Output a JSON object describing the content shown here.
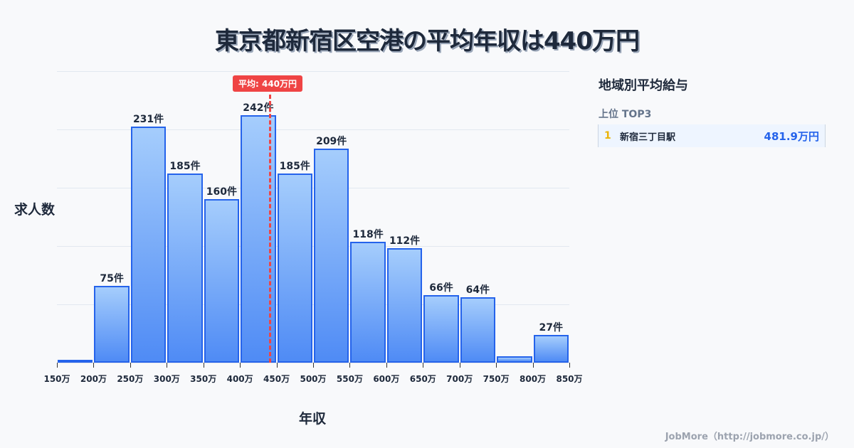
{
  "title": "東京都新宿区空港の平均年収は440万円",
  "axes": {
    "ylabel": "求人数",
    "xlabel": "年収"
  },
  "average": {
    "label": "平均: 440万円",
    "value": 440
  },
  "side": {
    "title": "地域別平均給与",
    "subtitle": "上位 TOP3",
    "rankings": [
      {
        "rank": "1",
        "name": "新宿三丁目駅",
        "value": "481.9万円"
      }
    ]
  },
  "footer": "JobMore（http://jobmore.co.jp/）",
  "colors": {
    "bar_border": "#2563eb",
    "bar_top": "#a5cdfc",
    "bar_bottom": "#4f8bf5",
    "avg_line": "#ef4444",
    "rank_value": "#2563eb",
    "rank_number": "#eab308"
  },
  "chart_data": {
    "type": "bar",
    "title": "東京都新宿区空港の平均年収は440万円",
    "xlabel": "年収",
    "ylabel": "求人数",
    "categories": [
      "150万",
      "200万",
      "250万",
      "300万",
      "350万",
      "400万",
      "450万",
      "500万",
      "550万",
      "600万",
      "650万",
      "700万",
      "750万",
      "800万"
    ],
    "tick_labels": [
      "150万",
      "200万",
      "250万",
      "300万",
      "350万",
      "400万",
      "450万",
      "500万",
      "550万",
      "600万",
      "650万",
      "700万",
      "750万",
      "800万",
      "850万"
    ],
    "values": [
      1,
      75,
      231,
      185,
      160,
      242,
      185,
      209,
      118,
      112,
      66,
      64,
      6,
      27
    ],
    "data_labels": [
      "",
      "75件",
      "231件",
      "185件",
      "160件",
      "242件",
      "185件",
      "209件",
      "118件",
      "112件",
      "66件",
      "64件",
      "",
      "27件"
    ],
    "annotations": [
      {
        "type": "vline",
        "x": 440,
        "label": "平均: 440万円"
      }
    ],
    "ylim": [
      0,
      285
    ],
    "grid": true,
    "legend": null
  }
}
